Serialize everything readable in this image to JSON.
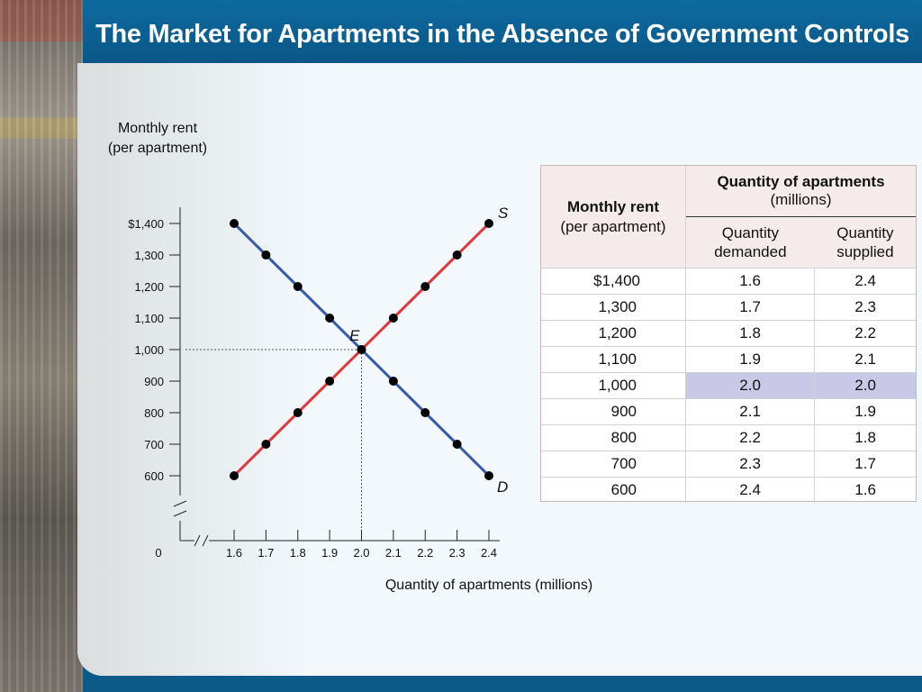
{
  "title": "The Market for Apartments in the Absence of Government Controls",
  "chart_data": {
    "type": "line",
    "ylabel_line1": "Monthly rent",
    "ylabel_line2": "(per apartment)",
    "xlabel": "Quantity of apartments (millions)",
    "origin_label": "0",
    "x": [
      1.6,
      1.7,
      1.8,
      1.9,
      2.0,
      2.1,
      2.2,
      2.3,
      2.4
    ],
    "x_tick_labels": [
      "1.6",
      "1.7",
      "1.8",
      "1.9",
      "2.0",
      "2.1",
      "2.2",
      "2.3",
      "2.4"
    ],
    "y": [
      600,
      700,
      800,
      900,
      1000,
      1100,
      1200,
      1300,
      1400
    ],
    "y_tick_labels": [
      "600",
      "700",
      "800",
      "900",
      "1,000",
      "1,100",
      "1,200",
      "1,300",
      "$1,400"
    ],
    "ylim": [
      600,
      1400
    ],
    "xlim": [
      1.6,
      2.4
    ],
    "axis_break": true,
    "series": [
      {
        "name": "D",
        "color": "#3a5ca8",
        "points": [
          [
            1.6,
            1400
          ],
          [
            1.7,
            1300
          ],
          [
            1.8,
            1200
          ],
          [
            1.9,
            1100
          ],
          [
            2.0,
            1000
          ],
          [
            2.1,
            900
          ],
          [
            2.2,
            800
          ],
          [
            2.3,
            700
          ],
          [
            2.4,
            600
          ]
        ]
      },
      {
        "name": "S",
        "color": "#e0393e",
        "points": [
          [
            1.6,
            600
          ],
          [
            1.7,
            700
          ],
          [
            1.8,
            800
          ],
          [
            1.9,
            900
          ],
          [
            2.0,
            1000
          ],
          [
            2.1,
            1100
          ],
          [
            2.2,
            1200
          ],
          [
            2.3,
            1300
          ],
          [
            2.4,
            1400
          ]
        ]
      }
    ],
    "equilibrium": {
      "label": "E",
      "x": 2.0,
      "y": 1000
    }
  },
  "table": {
    "rent_header": "Monthly rent",
    "rent_subheader": "(per apartment)",
    "qty_header": "Quantity of apartments",
    "qty_subheader": "(millions)",
    "demanded_line1": "Quantity",
    "demanded_line2": "demanded",
    "supplied_line1": "Quantity",
    "supplied_line2": "supplied",
    "rows": [
      {
        "rent": "$1,400",
        "demanded": "1.6",
        "supplied": "2.4"
      },
      {
        "rent": "1,300",
        "demanded": "1.7",
        "supplied": "2.3"
      },
      {
        "rent": "1,200",
        "demanded": "1.8",
        "supplied": "2.2"
      },
      {
        "rent": "1,100",
        "demanded": "1.9",
        "supplied": "2.1"
      },
      {
        "rent": "1,000",
        "demanded": "2.0",
        "supplied": "2.0"
      },
      {
        "rent": "900",
        "demanded": "2.1",
        "supplied": "1.9"
      },
      {
        "rent": "800",
        "demanded": "2.2",
        "supplied": "1.8"
      },
      {
        "rent": "700",
        "demanded": "2.3",
        "supplied": "1.7"
      },
      {
        "rent": "600",
        "demanded": "2.4",
        "supplied": "1.6"
      }
    ],
    "highlight_color": "#c9c8e6"
  }
}
